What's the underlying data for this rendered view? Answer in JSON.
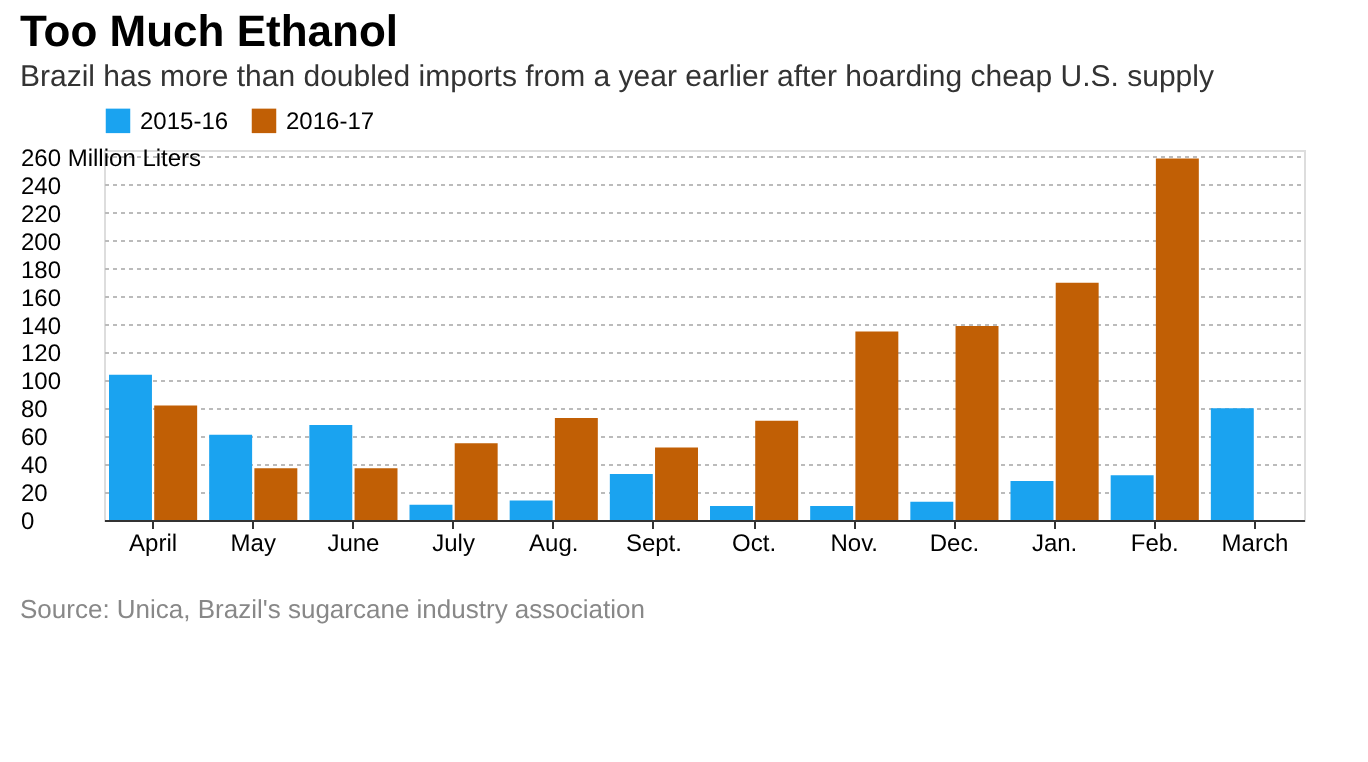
{
  "chart_data": {
    "type": "bar",
    "title": "Too Much Ethanol",
    "subtitle": "Brazil has more than doubled imports from a year earlier after hoarding cheap U.S. supply",
    "categories": [
      "April",
      "May",
      "June",
      "July",
      "Aug.",
      "Sept.",
      "Oct.",
      "Nov.",
      "Dec.",
      "Jan.",
      "Feb.",
      "March"
    ],
    "series": [
      {
        "name": "2015-16",
        "color": "#1aa3f0",
        "values": [
          104,
          61,
          68,
          11,
          14,
          33,
          10,
          10,
          13,
          28,
          32,
          80
        ]
      },
      {
        "name": "2016-17",
        "color": "#c15f05",
        "values": [
          82,
          37,
          37,
          55,
          73,
          52,
          71,
          135,
          139,
          170,
          259,
          null
        ]
      }
    ],
    "ylim": [
      0,
      265
    ],
    "yticks": [
      0,
      20,
      40,
      60,
      80,
      100,
      120,
      140,
      160,
      180,
      200,
      220,
      240,
      {
        "value": 260,
        "label": "260 Million Liters"
      }
    ],
    "grid": "y",
    "legend": "top left",
    "annotations": [
      "Source: Unica, Brazil's sugarcane industry association"
    ]
  }
}
